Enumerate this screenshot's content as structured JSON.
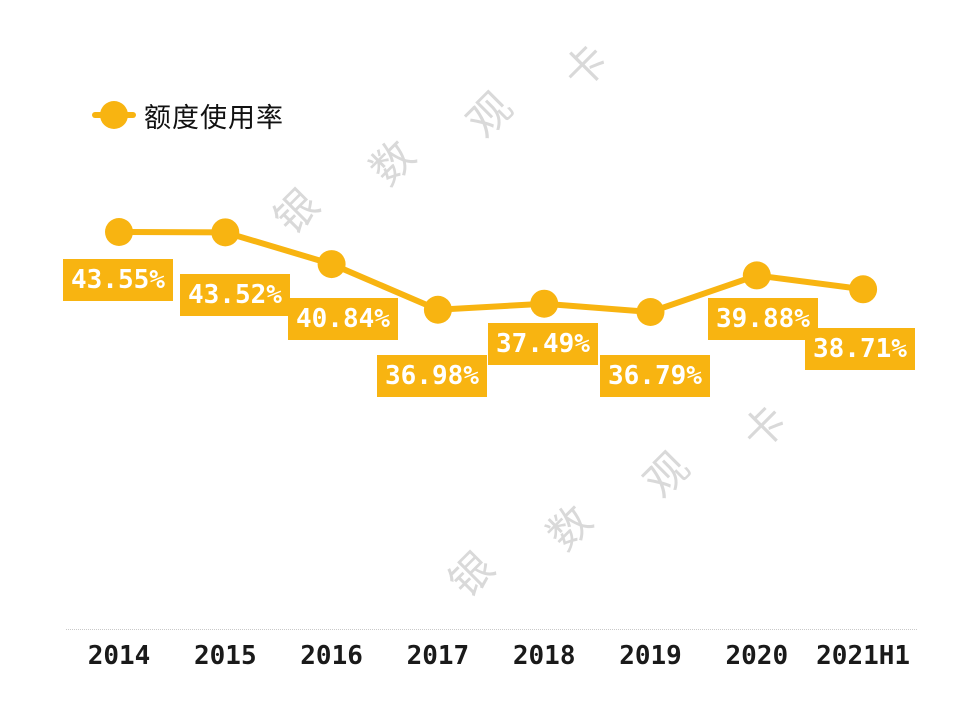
{
  "legend": {
    "label": "额度使用率"
  },
  "watermark": {
    "text": "银数观卡",
    "color": "#d9d9d9"
  },
  "colors": {
    "accent": "#F8B411",
    "label_text": "#ffffff",
    "axis_line": "#c9c9c9",
    "background": "#ffffff"
  },
  "chart_data": {
    "type": "line",
    "title": "",
    "xlabel": "",
    "ylabel": "",
    "grid": false,
    "legend_position": "top-left",
    "categories": [
      "2014",
      "2015",
      "2016",
      "2017",
      "2018",
      "2019",
      "2020",
      "2021H1"
    ],
    "series": [
      {
        "name": "额度使用率",
        "values": [
          43.55,
          43.52,
          40.84,
          36.98,
          37.49,
          36.79,
          39.88,
          38.71
        ]
      }
    ],
    "data_labels": [
      "43.55%",
      "43.52%",
      "40.84%",
      "36.98%",
      "37.49%",
      "36.79%",
      "39.88%",
      "38.71%"
    ],
    "ylim": [
      36.79,
      43.55
    ]
  }
}
